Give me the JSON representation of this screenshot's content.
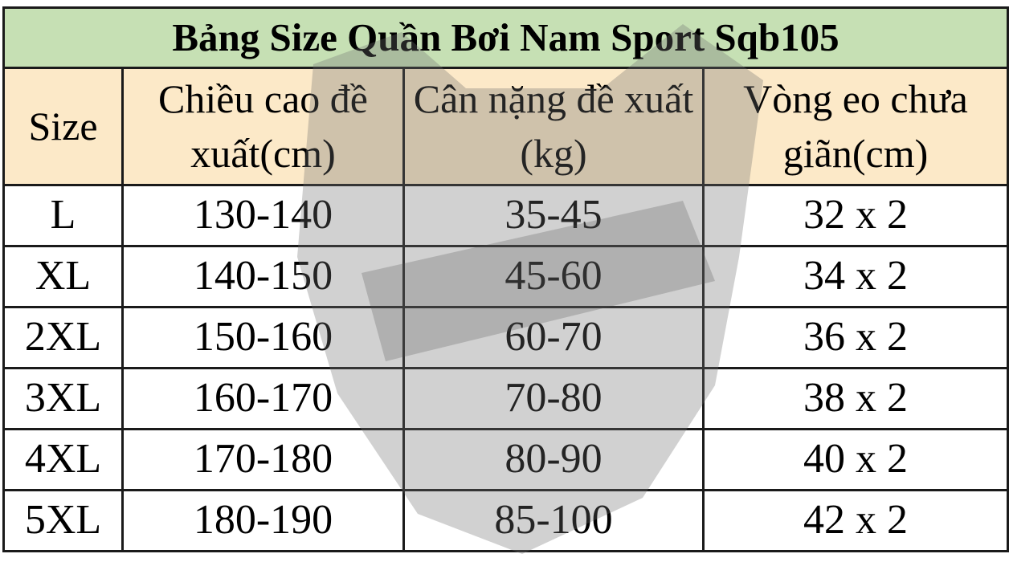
{
  "title": "Bảng Size Quần Bơi Nam Sport  Sqb105",
  "headers": [
    "Size",
    "Chiều cao đề xuất(cm)",
    "Cân nặng đề xuất (kg)",
    "Vòng eo chưa giãn(cm)"
  ],
  "rows": [
    [
      "L",
      "130-140",
      "35-45",
      "32 x 2"
    ],
    [
      "XL",
      "140-150",
      "45-60",
      "34 x 2"
    ],
    [
      "2XL",
      "150-160",
      "60-70",
      "36 x 2"
    ],
    [
      "3XL",
      "160-170",
      "70-80",
      "38 x 2"
    ],
    [
      "4XL",
      "170-180",
      "80-90",
      "40 x 2"
    ],
    [
      "5XL",
      "180-190",
      "85-100",
      "42 x 2"
    ]
  ],
  "colors": {
    "title_bg": "#c6e0b4",
    "header_bg": "#fce9c8",
    "watermark": "#808080"
  },
  "watermark_icon": "bear-logo-watermark"
}
